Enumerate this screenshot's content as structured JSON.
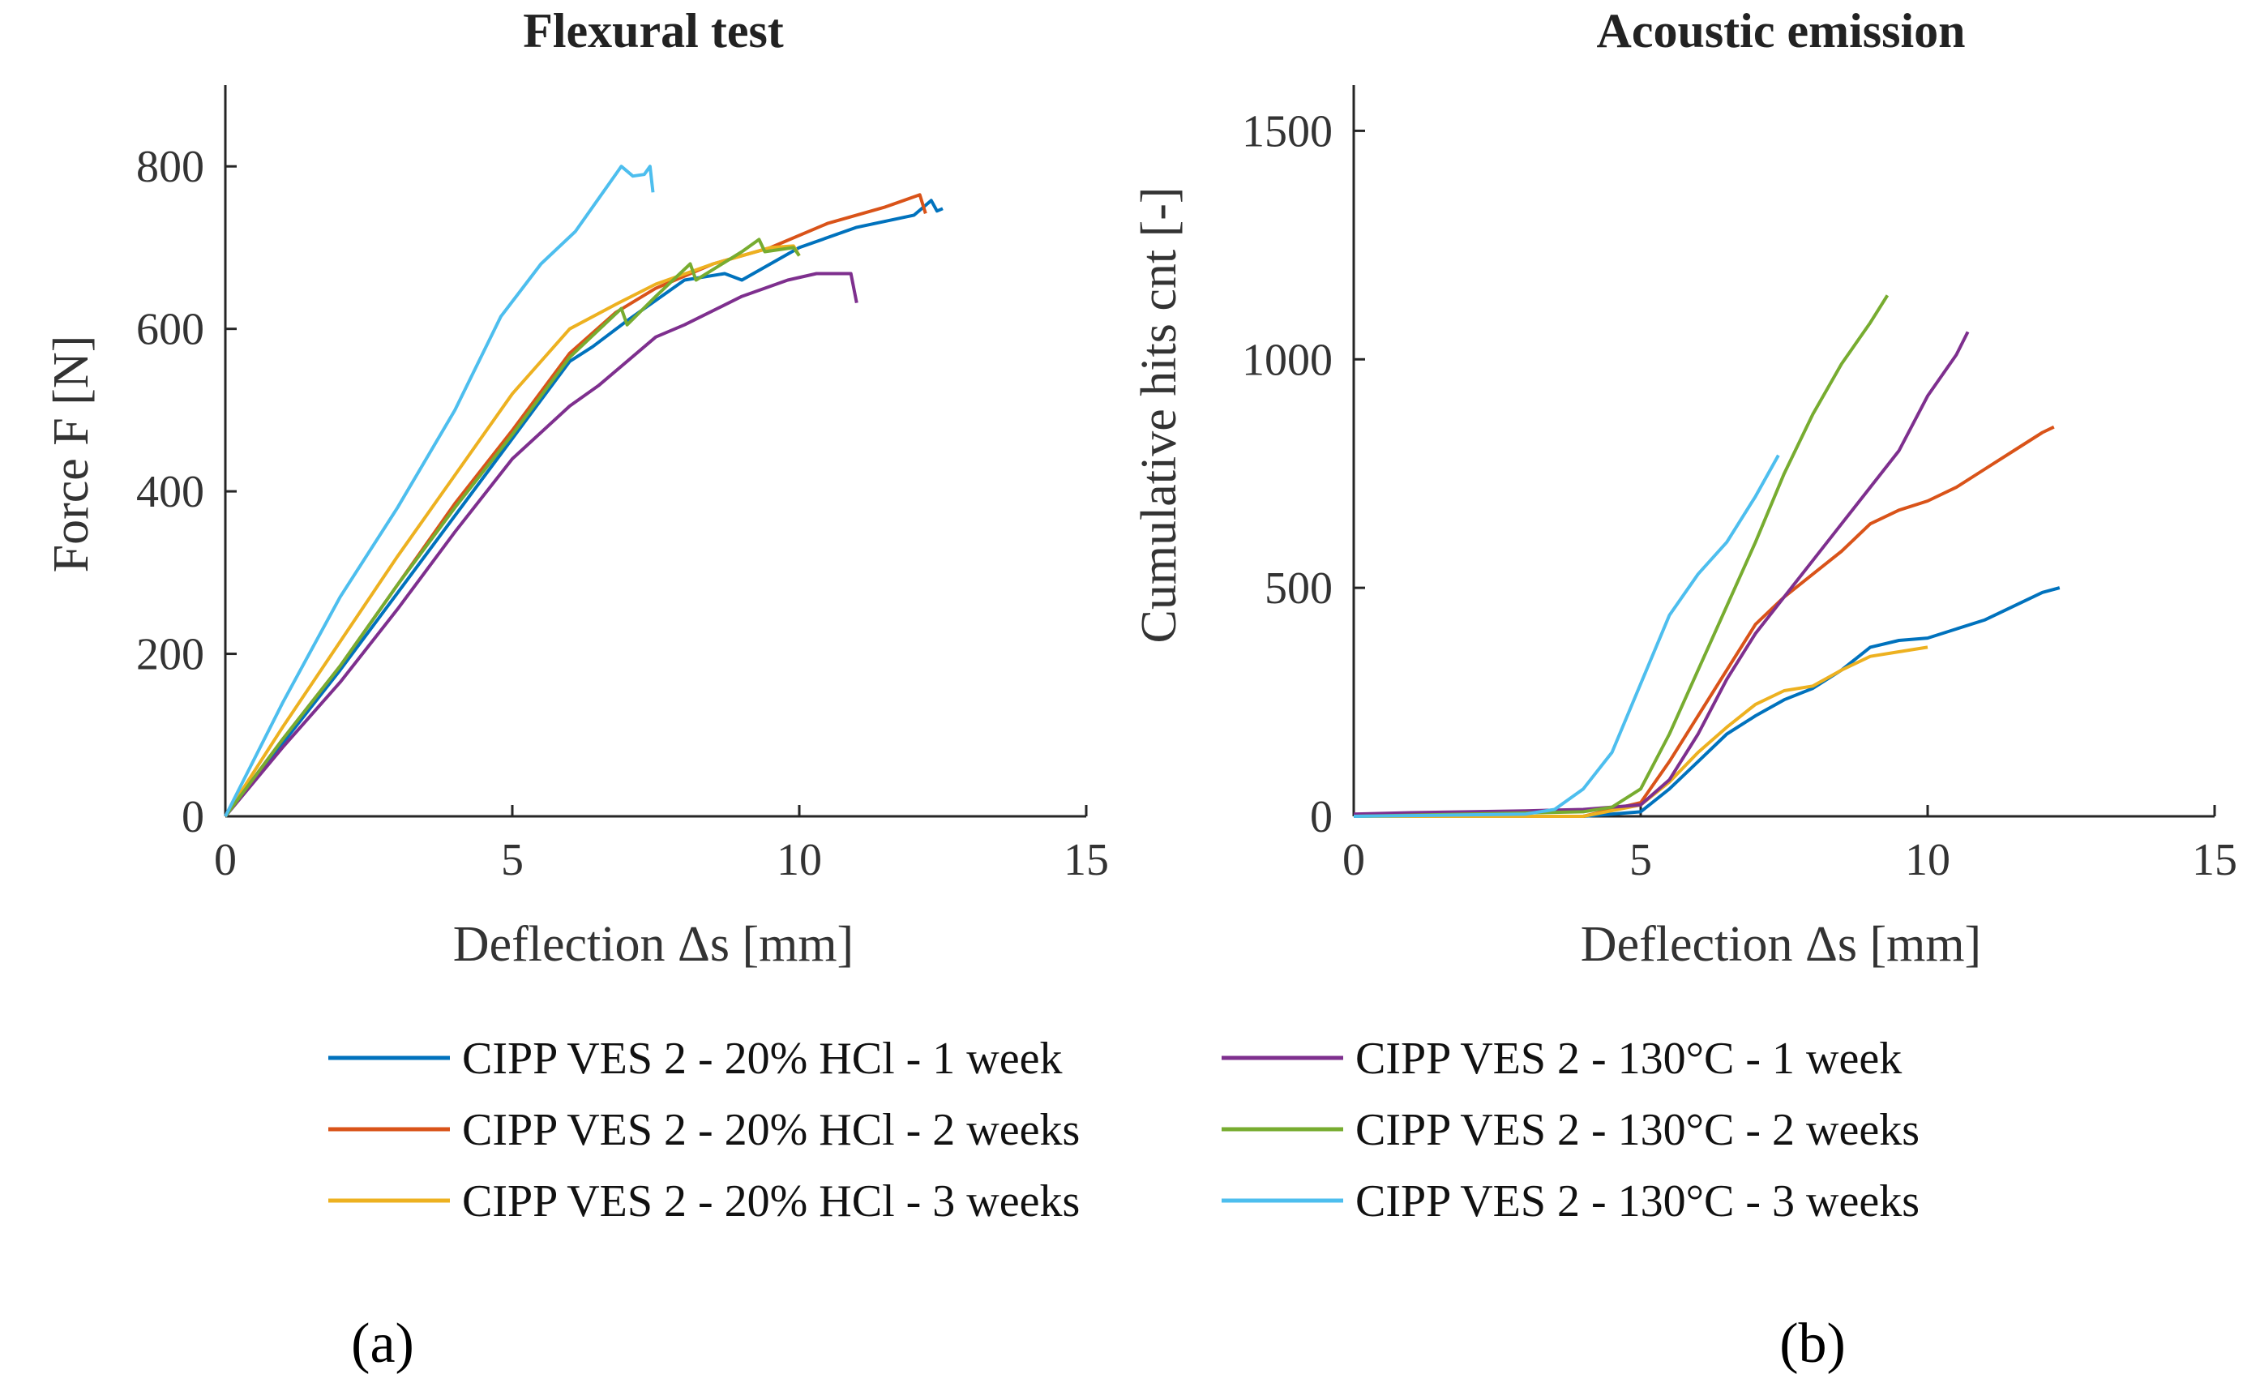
{
  "chart_data": [
    {
      "type": "line",
      "title": "Flexural test",
      "xlabel": "Deflection  Δs  [mm]",
      "ylabel": "Force  F  [N]",
      "xlim": [
        0,
        15
      ],
      "ylim": [
        0,
        900
      ],
      "xticks": [
        "0",
        "5",
        "10",
        "15"
      ],
      "yticks": [
        "0",
        "200",
        "400",
        "600",
        "800"
      ],
      "panel_label": "(a)",
      "series": [
        {
          "name": "CIPP VES 2 - 20% HCl - 1 week",
          "color": "#0072BD",
          "x": [
            0,
            1,
            2,
            3,
            4,
            5,
            6,
            6.4,
            7,
            8,
            8.7,
            9,
            10,
            11,
            12,
            12.3,
            12.4,
            12.5
          ],
          "y": [
            0,
            90,
            180,
            275,
            370,
            465,
            560,
            578,
            610,
            660,
            668,
            660,
            700,
            725,
            740,
            758,
            745,
            748
          ]
        },
        {
          "name": "CIPP VES 2 - 20% HCl - 2 weeks",
          "color": "#D95319",
          "x": [
            0,
            1,
            2,
            3,
            4,
            5,
            6,
            6.8,
            7.5,
            8.5,
            9.5,
            10.5,
            11.5,
            12.1,
            12.2
          ],
          "y": [
            0,
            95,
            185,
            285,
            385,
            475,
            570,
            620,
            650,
            680,
            700,
            730,
            750,
            765,
            742
          ]
        },
        {
          "name": "CIPP VES 2 - 20% HCl - 3 weeks",
          "color": "#EDB120",
          "x": [
            0,
            1,
            2,
            3,
            4,
            5,
            6,
            6.8,
            7.5,
            8.5,
            9.5,
            9.9,
            10.0
          ],
          "y": [
            0,
            110,
            215,
            320,
            420,
            520,
            600,
            630,
            655,
            680,
            700,
            702,
            690
          ]
        },
        {
          "name": "CIPP VES 2 - 130°C - 1 week",
          "color": "#7E2F8E",
          "x": [
            0,
            1,
            2,
            3,
            4,
            5,
            6,
            6.5,
            7.5,
            8,
            9,
            9.8,
            10.3,
            10.9,
            11.0
          ],
          "y": [
            0,
            85,
            165,
            255,
            350,
            440,
            505,
            530,
            590,
            605,
            640,
            660,
            668,
            668,
            632
          ]
        },
        {
          "name": "CIPP VES 2 - 130°C - 2 weeks",
          "color": "#77AC30",
          "x": [
            0,
            1,
            2,
            3,
            4,
            5,
            6,
            6.9,
            7.0,
            7.5,
            8.1,
            8.2,
            9,
            9.3,
            9.4,
            9.9,
            10.0
          ],
          "y": [
            0,
            95,
            185,
            285,
            380,
            470,
            565,
            625,
            605,
            640,
            680,
            660,
            695,
            710,
            695,
            700,
            690
          ]
        },
        {
          "name": "CIPP VES 2 - 130°C - 3 weeks",
          "color": "#4DBEEE",
          "x": [
            0,
            1,
            2,
            3,
            4,
            4.8,
            5.5,
            6.1,
            6.5,
            6.9,
            7.1,
            7.3,
            7.4,
            7.45
          ],
          "y": [
            0,
            140,
            270,
            380,
            500,
            615,
            680,
            720,
            760,
            800,
            788,
            790,
            800,
            768
          ]
        }
      ]
    },
    {
      "type": "line",
      "title": "Acoustic emission",
      "xlabel": "Deflection  Δs  [mm]",
      "ylabel": "Cumulative hits  cnt  [-]",
      "xlim": [
        0,
        15
      ],
      "ylim": [
        0,
        1600
      ],
      "xticks": [
        "0",
        "5",
        "10",
        "15"
      ],
      "yticks": [
        "0",
        "500",
        "1000",
        "1500"
      ],
      "panel_label": "(b)",
      "series": [
        {
          "name": "CIPP VES 2 - 20% HCl - 1 week",
          "color": "#0072BD",
          "x": [
            0,
            4,
            5,
            5.5,
            6,
            6.5,
            7,
            7.5,
            8,
            8.5,
            9,
            9.5,
            10,
            10.5,
            11,
            11.5,
            12,
            12.3
          ],
          "y": [
            0,
            0,
            10,
            60,
            120,
            180,
            220,
            255,
            280,
            320,
            370,
            385,
            390,
            410,
            430,
            460,
            490,
            500
          ]
        },
        {
          "name": "CIPP VES 2 - 20% HCl - 2 weeks",
          "color": "#D95319",
          "x": [
            0,
            4,
            5,
            5.5,
            6,
            6.5,
            7,
            7.5,
            8,
            8.5,
            9,
            9.5,
            10,
            10.5,
            11,
            11.5,
            12,
            12.2
          ],
          "y": [
            0,
            0,
            30,
            120,
            220,
            320,
            420,
            480,
            530,
            580,
            640,
            670,
            690,
            720,
            760,
            800,
            840,
            852
          ]
        },
        {
          "name": "CIPP VES 2 - 20% HCl - 3 weeks",
          "color": "#EDB120",
          "x": [
            0,
            4,
            5,
            5.5,
            6,
            6.5,
            7,
            7.5,
            8,
            8.5,
            9,
            9.5,
            10
          ],
          "y": [
            0,
            0,
            25,
            75,
            140,
            195,
            245,
            275,
            285,
            320,
            350,
            360,
            370
          ]
        },
        {
          "name": "CIPP VES 2 - 130°C - 1 week",
          "color": "#7E2F8E",
          "x": [
            0,
            1,
            2,
            3,
            4,
            5,
            5.5,
            6,
            6.5,
            7,
            7.5,
            8,
            8.5,
            9,
            9.5,
            10,
            10.5,
            10.7
          ],
          "y": [
            5,
            8,
            10,
            12,
            15,
            25,
            80,
            180,
            300,
            400,
            480,
            560,
            640,
            720,
            800,
            920,
            1010,
            1060
          ]
        },
        {
          "name": "CIPP VES 2 - 130°C - 2 weeks",
          "color": "#77AC30",
          "x": [
            0,
            4,
            4.5,
            5,
            5.5,
            6,
            6.5,
            7,
            7.5,
            8,
            8.5,
            9,
            9.3
          ],
          "y": [
            0,
            10,
            20,
            60,
            180,
            320,
            460,
            600,
            750,
            880,
            990,
            1080,
            1140
          ]
        },
        {
          "name": "CIPP VES 2 - 130°C - 3 weeks",
          "color": "#4DBEEE",
          "x": [
            0,
            3,
            3.5,
            4,
            4.5,
            5,
            5.5,
            6,
            6.5,
            7,
            7.4
          ],
          "y": [
            0,
            5,
            15,
            60,
            140,
            290,
            440,
            530,
            600,
            700,
            790
          ]
        }
      ]
    }
  ]
}
